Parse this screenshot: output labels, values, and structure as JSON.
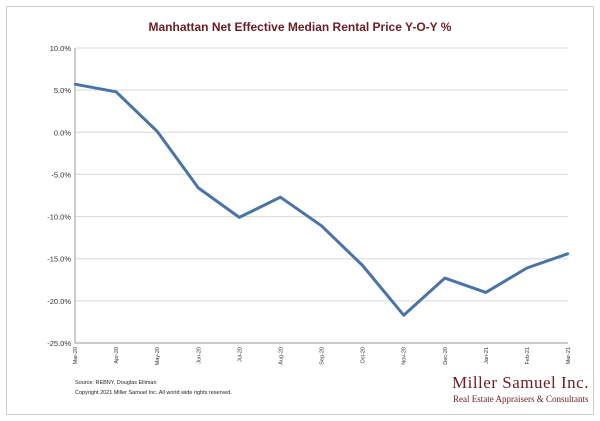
{
  "chart_data": {
    "type": "line",
    "title": "Manhattan Net Effective Median Rental Price Y-O-Y %",
    "xlabel": "",
    "ylabel": "",
    "categories": [
      "Mar-20",
      "Apr-20",
      "May-20",
      "Jun-20",
      "Jul-20",
      "Aug-20",
      "Sep-20",
      "Oct-20",
      "Nov-20",
      "Dec-20",
      "Jan-21",
      "Feb-21",
      "Mar-21"
    ],
    "values": [
      5.7,
      4.8,
      0.1,
      -6.6,
      -10.1,
      -7.7,
      -11.1,
      -15.8,
      -21.7,
      -17.3,
      -19.0,
      -16.1,
      -14.4
    ],
    "ylim": [
      -25,
      10
    ],
    "yticks": [
      10,
      5,
      0,
      -5,
      -10,
      -15,
      -20,
      -25
    ],
    "ytick_labels": [
      "10.0%",
      "5.0%",
      "0.0%",
      "-5.0%",
      "-10.0%",
      "-15.0%",
      "-20.0%",
      "-25.0%"
    ],
    "grid": true,
    "line_color": "#4a73a6",
    "grid_color": "#d9d9d9"
  },
  "footer": {
    "source": "Source: REBNY, Douglas Elliman",
    "copyright": "Copyright 2021 Miller Samuel Inc.  All world wide rights reserved."
  },
  "brand": {
    "name": "Miller Samuel Inc.",
    "tagline": "Real Estate Appraisers & Consultants",
    "color": "#6b1d24"
  }
}
